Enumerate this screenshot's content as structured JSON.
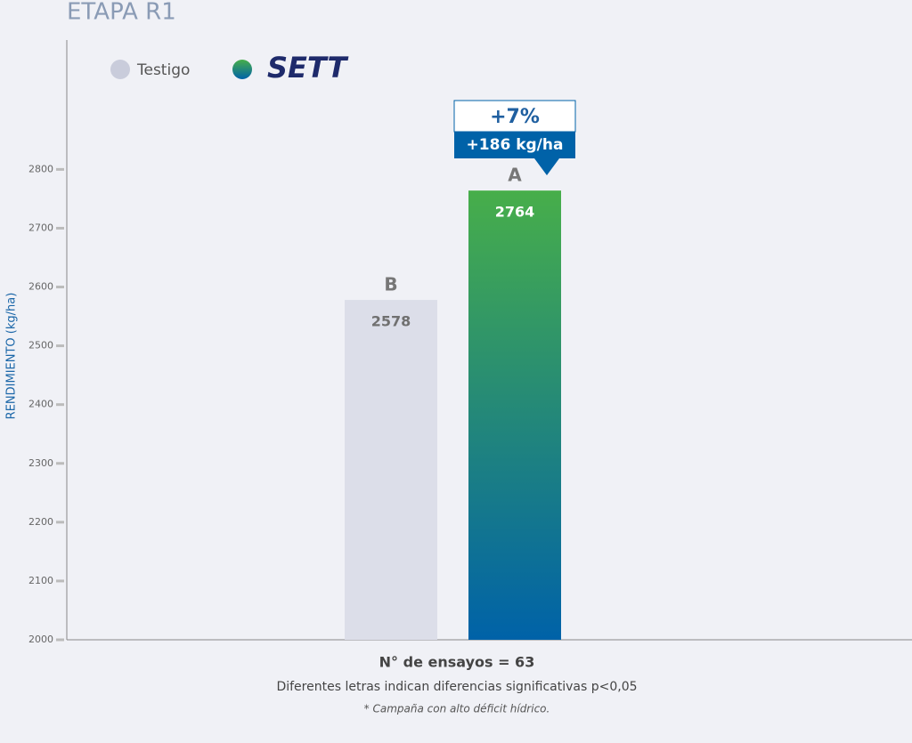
{
  "chart_data": {
    "type": "bar",
    "title": "ETAPA R1",
    "y_label": "RENDIMIENTO (kg/ha)",
    "x_label": "N° de ensayos = 63",
    "notes": [
      "Diferentes letras indican diferencias significativas p<0,05",
      "* Campaña con alto déficit hídrico."
    ],
    "series": [
      {
        "name": "Testigo",
        "color": "#dcdee9",
        "legend_color": "#c9ccdb",
        "label_color": "#707070",
        "letter": "B",
        "values": [
          2578
        ]
      },
      {
        "name": "SETT",
        "color": "#0062a8",
        "gradient_top": "#47ae4a",
        "label_color": "#ffffff",
        "letter": "A",
        "values": [
          2764
        ]
      }
    ],
    "annotations": [
      "+7%",
      "+186 kg/ha"
    ],
    "ylim": [
      2000,
      3020
    ],
    "yticks": [
      2000,
      2100,
      2200,
      2300,
      2400,
      2500,
      2600,
      2700,
      2800
    ]
  }
}
